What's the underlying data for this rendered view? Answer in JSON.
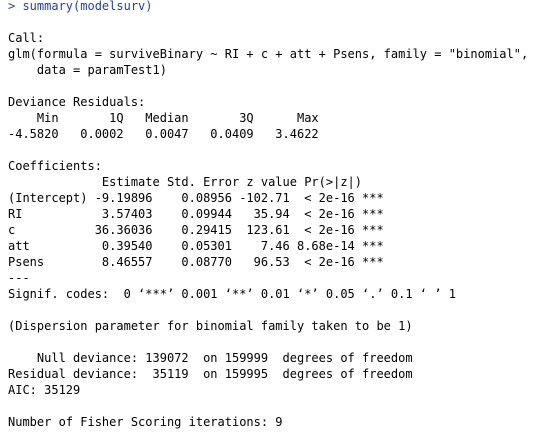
{
  "colors": {
    "background": "#ffffff",
    "input_text": "#1f3fb6",
    "output_text": "#000000"
  },
  "command": {
    "prompt": "> ",
    "text": "summary(modelsurv)"
  },
  "call": {
    "header": "Call:",
    "line1": "glm(formula = surviveBinary ~ RI + c + att + Psens, family = \"binomial\",",
    "line2": "    data = paramTest1)"
  },
  "deviance_residuals": {
    "header": "Deviance Residuals:",
    "labels": "    Min       1Q   Median       3Q      Max  ",
    "values": "-4.5820   0.0002   0.0047   0.0409   3.4622  "
  },
  "coefficients": {
    "header": "Coefficients:",
    "columns": "             Estimate Std. Error z value Pr(>|z|)    ",
    "rows": [
      "(Intercept) -9.19896    0.08956 -102.71  < 2e-16 ***",
      "RI           3.57403    0.09944   35.94  < 2e-16 ***",
      "c           36.36036    0.29415  123.61  < 2e-16 ***",
      "att          0.39540    0.05301    7.46 8.68e-14 ***",
      "Psens        8.46557    0.08770   96.53  < 2e-16 ***"
    ],
    "separator": "---",
    "signif": "Signif. codes:  0 ‘***’ 0.001 ‘**’ 0.01 ‘*’ 0.05 ‘.’ 0.1 ‘ ’ 1"
  },
  "dispersion": "(Dispersion parameter for binomial family taken to be 1)",
  "deviance": {
    "null": "    Null deviance: 139072  on 159999  degrees of freedom",
    "residual": "Residual deviance:  35119  on 159995  degrees of freedom",
    "aic": "AIC: 35129"
  },
  "fisher": "Number of Fisher Scoring iterations: 9"
}
